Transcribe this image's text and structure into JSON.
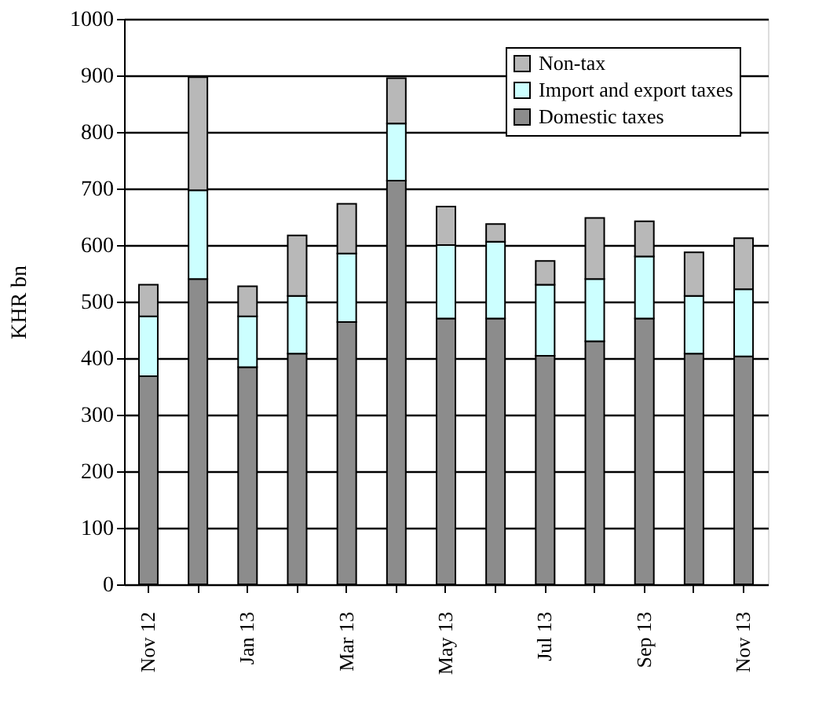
{
  "chart_data": {
    "type": "bar",
    "stacked": true,
    "ylabel": "KHR bn",
    "categories": [
      "Nov 12",
      null,
      "Jan 13",
      null,
      "Mar 13",
      null,
      "May 13",
      null,
      "Jul 13",
      null,
      "Sep 13",
      null,
      "Nov 13"
    ],
    "series": [
      {
        "name": "Domestic taxes",
        "color": "#8c8c8c",
        "values": [
          368,
          540,
          384,
          408,
          464,
          714,
          470,
          470,
          404,
          430,
          470,
          408,
          403
        ]
      },
      {
        "name": "Import and export taxes",
        "color": "#ccffff",
        "values": [
          106,
          157,
          90,
          102,
          121,
          101,
          130,
          136,
          126,
          110,
          110,
          102,
          119
        ]
      },
      {
        "name": "Non-tax",
        "color": "#b8b8b8",
        "values": [
          56,
          200,
          53,
          107,
          88,
          80,
          68,
          31,
          42,
          108,
          62,
          77,
          90
        ]
      }
    ],
    "ylim": [
      0,
      1000
    ],
    "yticks": [
      0,
      100,
      200,
      300,
      400,
      500,
      600,
      700,
      800,
      900,
      1000
    ],
    "grid": "y",
    "legend": "top right"
  }
}
